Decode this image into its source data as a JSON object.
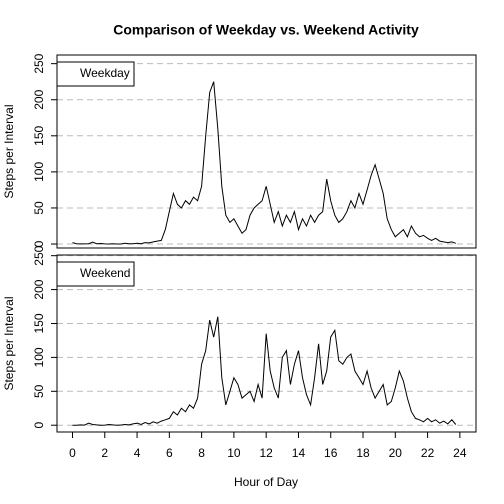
{
  "chart_data": [
    {
      "type": "line",
      "title": "Comparison of Weekday vs. Weekend Activity",
      "y_label": "Steps per Interval",
      "series": [
        {
          "name": "Weekday",
          "color": "#000000",
          "x": [
            0,
            0.25,
            0.5,
            0.75,
            1,
            1.25,
            1.5,
            1.75,
            2,
            2.25,
            2.5,
            2.75,
            3,
            3.25,
            3.5,
            3.75,
            4,
            4.25,
            4.5,
            4.75,
            5,
            5.25,
            5.5,
            5.75,
            6,
            6.25,
            6.5,
            6.75,
            7,
            7.25,
            7.5,
            7.75,
            8,
            8.25,
            8.5,
            8.75,
            9,
            9.25,
            9.5,
            9.75,
            10,
            10.25,
            10.5,
            10.75,
            11,
            11.25,
            11.5,
            11.75,
            12,
            12.25,
            12.5,
            12.75,
            13,
            13.25,
            13.5,
            13.75,
            14,
            14.25,
            14.5,
            14.75,
            15,
            15.25,
            15.5,
            15.75,
            16,
            16.25,
            16.5,
            16.75,
            17,
            17.25,
            17.5,
            17.75,
            18,
            18.25,
            18.5,
            18.75,
            19,
            19.25,
            19.5,
            19.75,
            20,
            20.25,
            20.5,
            20.75,
            21,
            21.25,
            21.5,
            21.75,
            22,
            22.25,
            22.5,
            22.75,
            23,
            23.25,
            23.5,
            23.75
          ],
          "values": [
            2,
            0.5,
            0.2,
            0.2,
            0.4,
            2.5,
            0.5,
            0.8,
            0.2,
            0,
            0.3,
            0.1,
            0,
            1,
            0.5,
            0.3,
            1,
            0.5,
            2,
            1.5,
            3,
            4,
            5,
            20,
            45,
            70,
            55,
            50,
            60,
            55,
            65,
            60,
            80,
            150,
            210,
            225,
            160,
            80,
            40,
            30,
            35,
            25,
            15,
            20,
            40,
            50,
            55,
            60,
            80,
            55,
            30,
            45,
            25,
            40,
            30,
            45,
            20,
            35,
            25,
            40,
            30,
            40,
            45,
            90,
            60,
            40,
            30,
            35,
            45,
            60,
            50,
            70,
            55,
            75,
            95,
            110,
            90,
            70,
            35,
            20,
            10,
            15,
            20,
            10,
            25,
            15,
            10,
            12,
            8,
            5,
            8,
            4,
            3,
            2,
            3,
            1
          ]
        }
      ],
      "xlim": [
        -0.96,
        25.0
      ],
      "ylim": [
        -5.5,
        262
      ],
      "yticks": [
        0,
        50,
        100,
        150,
        200,
        250
      ],
      "grid": true,
      "legend": "top-left"
    },
    {
      "type": "line",
      "x_label": "Hour of Day",
      "y_label": "Steps per Interval",
      "series": [
        {
          "name": "Weekend",
          "color": "#000000",
          "x": [
            0,
            0.25,
            0.5,
            0.75,
            1,
            1.25,
            1.5,
            1.75,
            2,
            2.25,
            2.5,
            2.75,
            3,
            3.25,
            3.5,
            3.75,
            4,
            4.25,
            4.5,
            4.75,
            5,
            5.25,
            5.5,
            5.75,
            6,
            6.25,
            6.5,
            6.75,
            7,
            7.25,
            7.5,
            7.75,
            8,
            8.25,
            8.5,
            8.75,
            9,
            9.25,
            9.5,
            9.75,
            10,
            10.25,
            10.5,
            10.75,
            11,
            11.25,
            11.5,
            11.75,
            12,
            12.25,
            12.5,
            12.75,
            13,
            13.25,
            13.5,
            13.75,
            14,
            14.25,
            14.5,
            14.75,
            15,
            15.25,
            15.5,
            15.75,
            16,
            16.25,
            16.5,
            16.75,
            17,
            17.25,
            17.5,
            17.75,
            18,
            18.25,
            18.5,
            18.75,
            19,
            19.25,
            19.5,
            19.75,
            20,
            20.25,
            20.5,
            20.75,
            21,
            21.25,
            21.5,
            21.75,
            22,
            22.25,
            22.5,
            22.75,
            23,
            23.25,
            23.5,
            23.75
          ],
          "values": [
            0,
            0,
            0.5,
            0.2,
            3,
            1,
            0.5,
            0,
            0.2,
            1,
            0.5,
            0,
            0.3,
            1,
            0.5,
            2,
            3,
            1,
            4,
            2,
            5,
            3,
            6,
            8,
            10,
            20,
            15,
            25,
            20,
            30,
            25,
            40,
            90,
            110,
            155,
            130,
            160,
            70,
            30,
            50,
            70,
            60,
            40,
            45,
            50,
            35,
            60,
            40,
            135,
            80,
            55,
            40,
            100,
            110,
            60,
            90,
            110,
            70,
            45,
            30,
            70,
            120,
            60,
            80,
            130,
            140,
            95,
            90,
            100,
            105,
            80,
            70,
            60,
            80,
            55,
            40,
            50,
            60,
            30,
            35,
            55,
            80,
            65,
            40,
            20,
            10,
            8,
            5,
            10,
            5,
            8,
            3,
            6,
            2,
            8,
            1
          ]
        }
      ],
      "xlim": [
        -0.96,
        25.0
      ],
      "ylim": [
        -10,
        251
      ],
      "xticks": [
        0,
        2,
        4,
        6,
        8,
        10,
        12,
        14,
        16,
        18,
        20,
        22,
        24
      ],
      "yticks": [
        0,
        50,
        100,
        150,
        200,
        250
      ],
      "grid": true,
      "legend": "top-left"
    }
  ]
}
